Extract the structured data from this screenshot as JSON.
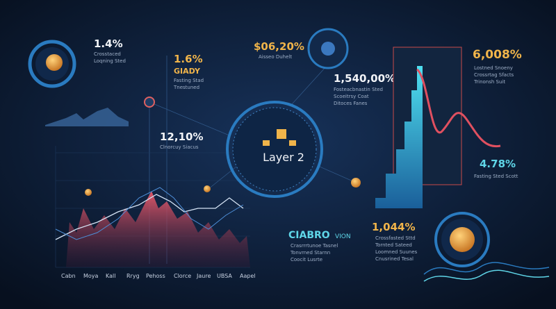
{
  "header": {
    "left_top": {
      "value": "1.4%",
      "lines": [
        "Crosstaced",
        "Loqning Sted"
      ]
    },
    "left_mid": {
      "value": "1.6%",
      "sub": "GIADY",
      "lines": [
        "Fasting Stad",
        "Tnestuned"
      ]
    },
    "left_low": {
      "value": "12,10%",
      "lines": [
        "Clnorcuy Siacus"
      ]
    },
    "center_top": {
      "value": "$06,20%",
      "lines": [
        "Aisseo Duhelt"
      ]
    },
    "center_mid": {
      "value": "1,540,00%",
      "lines": [
        "Fosteacbnastin Sted",
        "Scoeitrsy Coat",
        "Ditoces Fanes"
      ]
    },
    "center": {
      "label": "Layer 2"
    },
    "right_top": {
      "value": "6,008%",
      "lines": [
        "Lostned Snoeny",
        "Crossrtag Sfacts",
        "Trinonsh Suit"
      ]
    },
    "right_mid": {
      "value": "4.78%",
      "lines": [
        "Fasting Sted Scott"
      ]
    },
    "bottom_mid": {
      "title": "CIABRO",
      "sub": "VION",
      "lines": [
        "Crasrrrtunoe Tasnel",
        "Tonvrned Starnn",
        "Coocit Lusrte"
      ]
    },
    "bottom_right": {
      "value": "1,044%",
      "lines": [
        "Crossfasted Sttd",
        "Tornted Sateed",
        "Loomned Suunes",
        "Cnusrined Tesal"
      ]
    }
  },
  "axis": {
    "labels": [
      "Cabn",
      "Moya",
      "Kall",
      "Rryg",
      "Pehoss",
      "Clorce",
      "Jaure",
      "UBSA",
      "Aapel"
    ]
  }
}
